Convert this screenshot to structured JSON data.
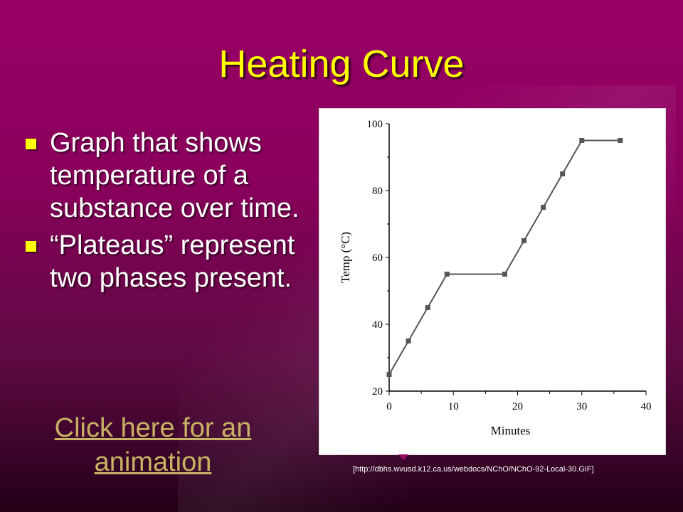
{
  "slide": {
    "title": "Heating Curve",
    "bullets": [
      "Graph that shows temperature of a substance over time.",
      "“Plateaus” represent two phases present."
    ],
    "link_text": "Click here for an animation",
    "caption": "[http://dbhs.wvusd.k12.ca.us/webdocs/NChO/NChO-92-Local-30.GIF]",
    "colors": {
      "title": "#ffff00",
      "bullet_marker": "#ffff00",
      "link": "#c7b264",
      "background_top": "#990066",
      "background_bottom": "#230018"
    }
  },
  "chart_data": {
    "type": "line",
    "title": "",
    "xlabel": "Minutes",
    "ylabel": "Temp (°C)",
    "xlim": [
      0,
      40
    ],
    "ylim": [
      20,
      100
    ],
    "xticks": [
      0,
      10,
      20,
      30,
      40
    ],
    "yticks": [
      20,
      40,
      60,
      80,
      100
    ],
    "grid": false,
    "series": [
      {
        "x": [
          0,
          3,
          6,
          9,
          18,
          21,
          24,
          27,
          30,
          36
        ],
        "y": [
          25,
          35,
          45,
          55,
          55,
          65,
          75,
          85,
          95,
          95
        ]
      }
    ],
    "colors": {
      "line": "#555555",
      "marker": "#555555",
      "axis": "#000000"
    }
  }
}
